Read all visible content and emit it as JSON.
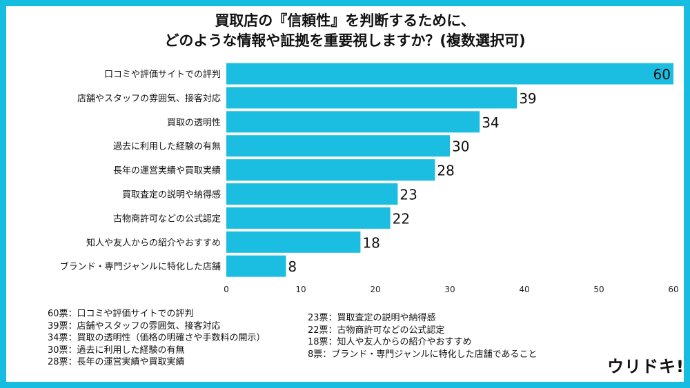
{
  "chart_data": {
    "type": "bar",
    "orientation": "horizontal",
    "title": "買取店の『信頼性』を判断するために、",
    "subtitle": "どのような情報や証拠を重要視しますか？(複数選択可)",
    "categories": [
      "口コミや評価サイトでの評判",
      "店舗やスタッフの雰囲気、接客対応",
      "買取の透明性",
      "過去に利用した経験の有無",
      "長年の運営実績や買取実績",
      "買取査定の説明や納得感",
      "古物商許可などの公式認定",
      "知人や友人からの紹介やおすすめ",
      "ブランド・専門ジャンルに特化した店舗"
    ],
    "values": [
      60,
      39,
      34,
      30,
      28,
      23,
      22,
      18,
      8
    ],
    "xlim": [
      0,
      60
    ],
    "xticks": [
      "0",
      "10",
      "20",
      "30",
      "40",
      "50",
      "60"
    ],
    "grid": false,
    "bar_color": "#1bbde0"
  },
  "notes_left": [
    "60票：口コミや評価サイトでの評判",
    "39票：店舗やスタッフの雰囲気、接客対応",
    "34票：買取の透明性（価格の明確さや手数料の開示）",
    "30票：過去に利用した経験の有無",
    "28票：長年の運営実績や買取実績"
  ],
  "notes_right": [
    "23票：買取査定の説明や納得感",
    "22票：古物商許可などの公式認定",
    "18票：知人や友人からの紹介やおすすめ",
    "8票：ブランド・専門ジャンルに特化した店舗であること"
  ],
  "logo": "ウリドキ!",
  "frame_color": "#17bde0"
}
